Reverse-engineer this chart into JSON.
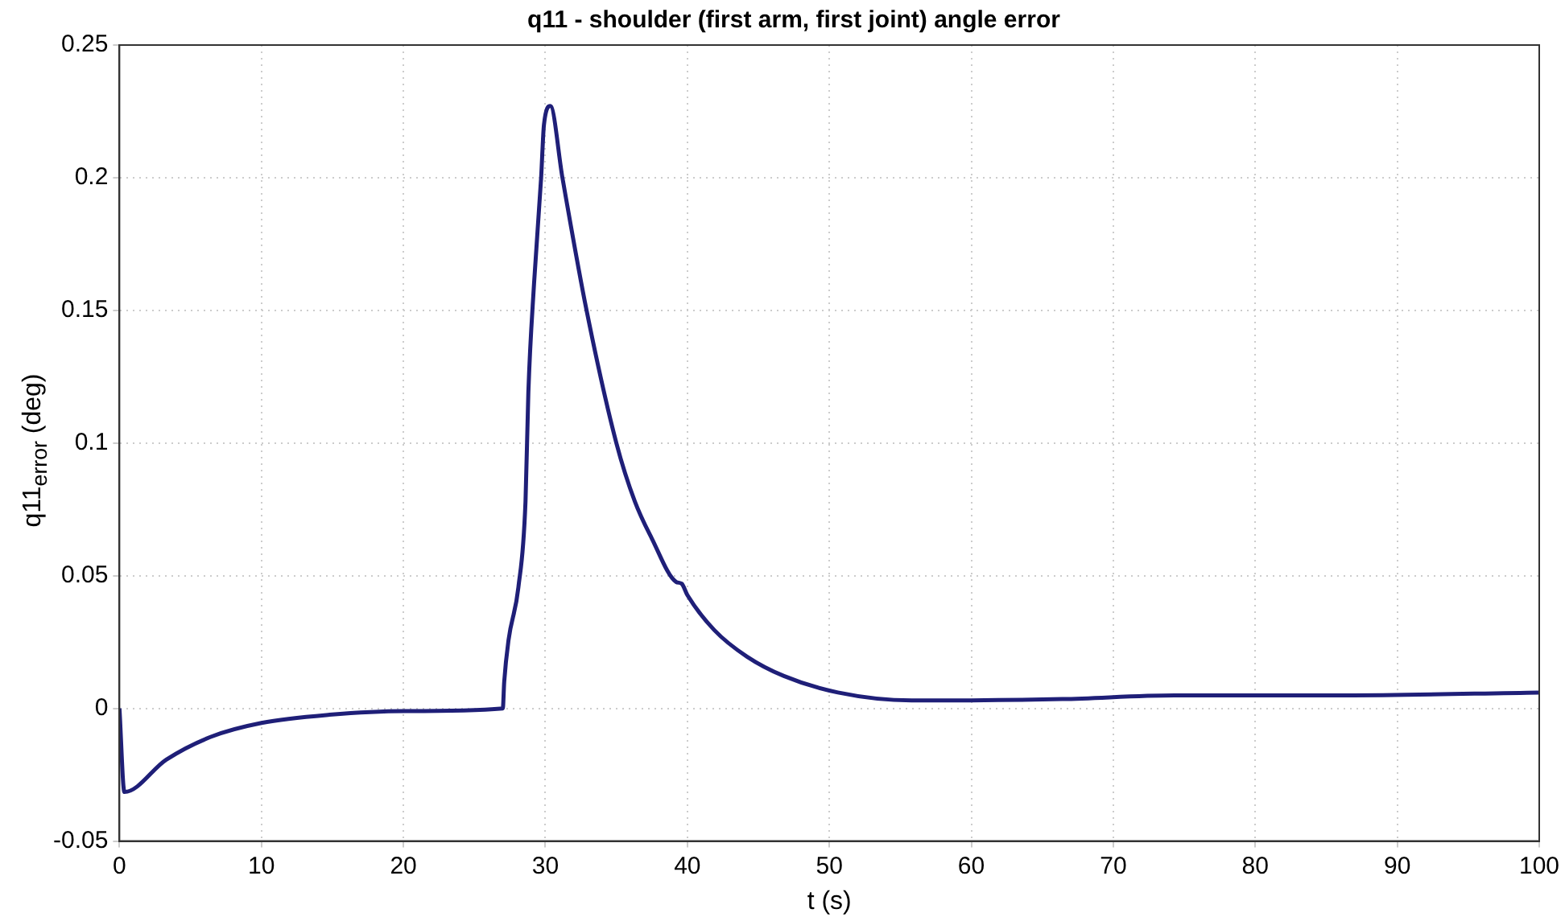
{
  "chart_data": {
    "type": "line",
    "title": "q11 - shoulder (first arm, first joint) angle error",
    "xlabel": "t (s)",
    "ylabel": "q11$_{error}$ (deg)",
    "xlim": [
      0,
      100
    ],
    "xticks": [
      0,
      10,
      20,
      30,
      40,
      50,
      60,
      70,
      80,
      90,
      100
    ],
    "ylim": [
      -0.05,
      0.25
    ],
    "yticks": [
      -0.05,
      0,
      0.05,
      0.1,
      0.15,
      0.2,
      0.25
    ],
    "grid": true,
    "legend": false,
    "marker": "none",
    "line_style": "solid",
    "series": [
      {
        "color": "#1f1f78",
        "x": [
          0,
          0.35,
          3.3,
          6.4,
          10,
          14.8,
          20.1,
          27,
          27.1,
          27.4,
          28.1,
          28.6,
          28.8,
          29.2,
          29.7,
          29.9,
          30.35,
          31.2,
          32.9,
          35,
          36.3,
          37.5,
          39.2,
          39.6,
          40,
          41.9,
          44.2,
          46.8,
          50.6,
          55.8,
          66.4,
          74.3,
          86.3,
          100
        ],
        "values": [
          0,
          -0.0315,
          -0.0193,
          -0.0108,
          -0.0055,
          -0.0024,
          -0.001,
          0,
          0.01,
          0.0256,
          0.0457,
          0.078,
          0.119,
          0.16,
          0.2,
          0.22,
          0.227,
          0.2,
          0.15,
          0.1,
          0.078,
          0.064,
          0.0477,
          0.047,
          0.0427,
          0.0295,
          0.0195,
          0.0122,
          0.006,
          0.003,
          0.0035,
          0.0049,
          0.0049,
          0.006
        ]
      }
    ]
  }
}
